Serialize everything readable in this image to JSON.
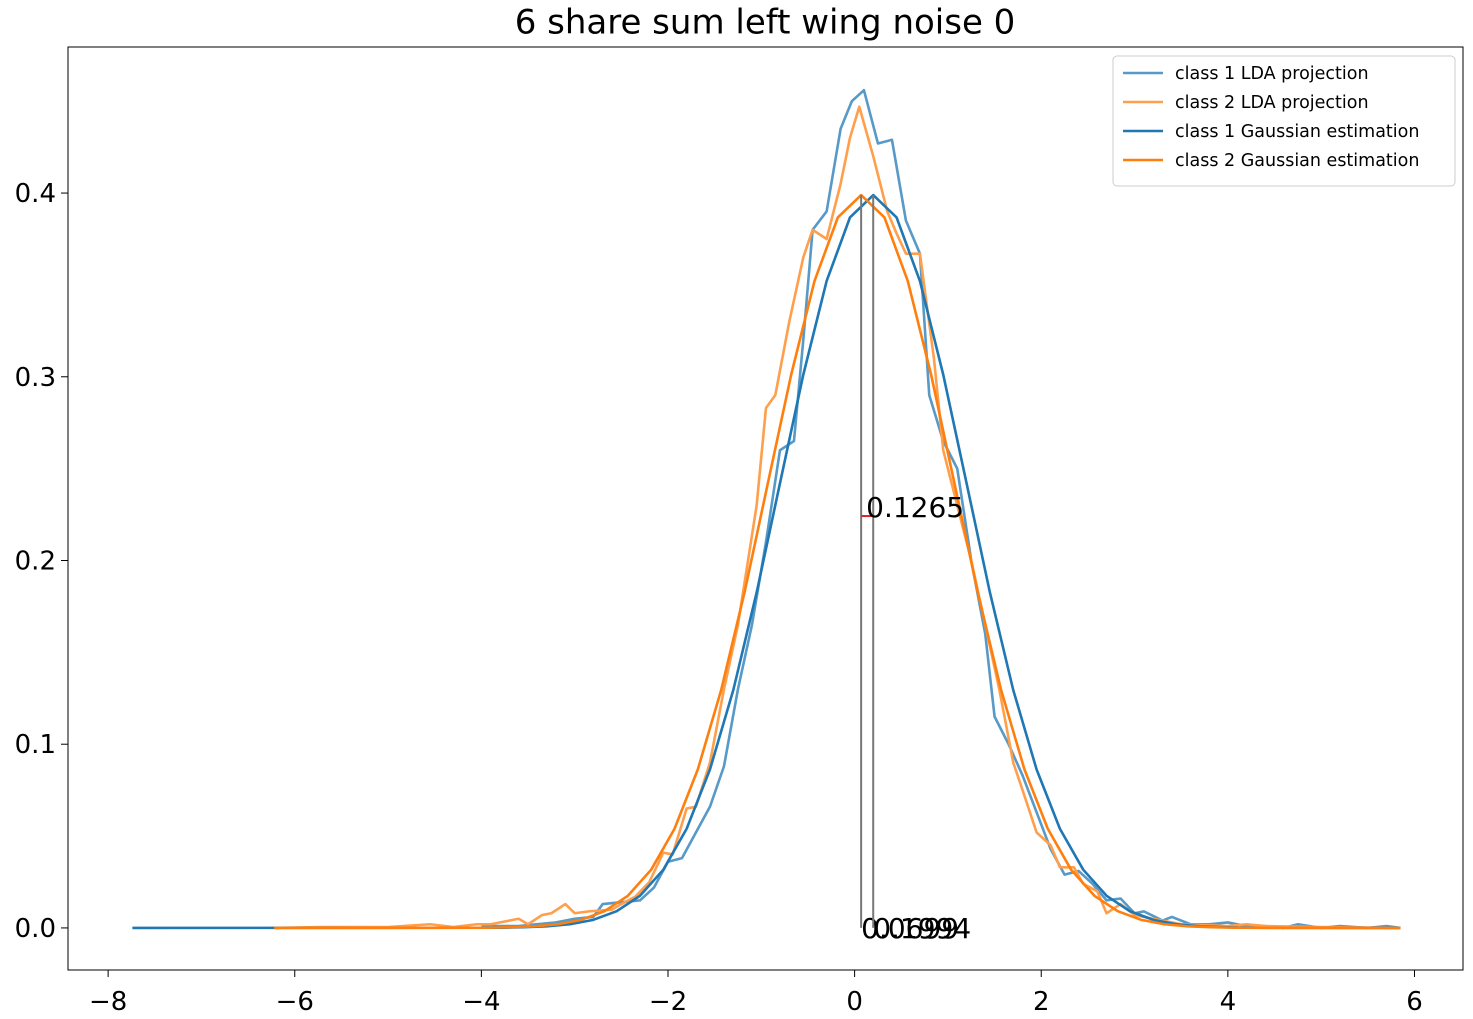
{
  "chart_data": {
    "type": "line",
    "title": "6 share sum left wing noise 0",
    "xlim": [
      -8.43,
      6.52
    ],
    "ylim": [
      -0.0229,
      0.4795
    ],
    "xticks": [
      {
        "value": -8,
        "label": "−8"
      },
      {
        "value": -6,
        "label": "−6"
      },
      {
        "value": -4,
        "label": "−4"
      },
      {
        "value": -2,
        "label": "−2"
      },
      0,
      2,
      4,
      6
    ],
    "yticks": [
      {
        "value": 0,
        "label": "0.0"
      },
      0.1,
      0.2,
      0.3,
      0.4
    ],
    "grid": false,
    "legend": "upper right",
    "series": [
      {
        "name": "class 1 LDA projection",
        "color": "#5799c7",
        "x": [
          -4,
          -3.6,
          -3.2,
          -3.0,
          -2.8,
          -2.7,
          -2.5,
          -2.3,
          -2.15,
          -2.0,
          -1.85,
          -1.7,
          -1.55,
          -1.4,
          -1.25,
          -1.1,
          -0.95,
          -0.8,
          -0.65,
          -0.55,
          -0.45,
          -0.3,
          -0.15,
          -0.03,
          0.1,
          0.25,
          0.4,
          0.55,
          0.7,
          0.8,
          0.95,
          1.1,
          1.25,
          1.4,
          1.5,
          1.65,
          1.8,
          1.95,
          2.1,
          2.25,
          2.4,
          2.55,
          2.7,
          2.85,
          3.0,
          3.1,
          3.3,
          3.4,
          3.6,
          3.8,
          4.0,
          4.2,
          4.4,
          4.6,
          4.75,
          5.0,
          5.2,
          5.5,
          5.7,
          5.85
        ],
        "values": [
          0.001,
          0.001,
          0.003,
          0.005,
          0.006,
          0.013,
          0.014,
          0.015,
          0.022,
          0.036,
          0.038,
          0.052,
          0.066,
          0.088,
          0.13,
          0.165,
          0.21,
          0.26,
          0.265,
          0.32,
          0.38,
          0.39,
          0.435,
          0.45,
          0.456,
          0.427,
          0.429,
          0.385,
          0.367,
          0.29,
          0.265,
          0.25,
          0.2,
          0.16,
          0.115,
          0.1,
          0.083,
          0.063,
          0.043,
          0.029,
          0.031,
          0.024,
          0.015,
          0.016,
          0.008,
          0.009,
          0.004,
          0.006,
          0.002,
          0.002,
          0.003,
          0.001,
          0.001,
          0.0,
          0.002,
          0.0,
          0.001,
          0.0,
          0.001,
          0
        ]
      },
      {
        "name": "class 2 LDA projection",
        "color": "#ff9f4b",
        "x": [
          -6.22,
          -5.7,
          -5.0,
          -4.55,
          -4.3,
          -4.05,
          -3.9,
          -3.6,
          -3.5,
          -3.35,
          -3.25,
          -3.1,
          -3.0,
          -2.85,
          -2.6,
          -2.5,
          -2.35,
          -2.2,
          -2.05,
          -1.95,
          -1.8,
          -1.7,
          -1.55,
          -1.4,
          -1.25,
          -1.05,
          -0.95,
          -0.85,
          -0.7,
          -0.55,
          -0.45,
          -0.3,
          -0.15,
          -0.05,
          0.05,
          0.2,
          0.35,
          0.45,
          0.55,
          0.7,
          0.85,
          0.95,
          1.1,
          1.25,
          1.4,
          1.55,
          1.7,
          1.8,
          1.95,
          2.1,
          2.2,
          2.35,
          2.45,
          2.6,
          2.7,
          2.85,
          3.0,
          3.2,
          3.5,
          4.0,
          4.2,
          4.4,
          5.0,
          5.85
        ],
        "values": [
          0,
          0.0005,
          0.0005,
          0.002,
          0.0005,
          0.002,
          0.002,
          0.005,
          0.002,
          0.007,
          0.008,
          0.013,
          0.008,
          0.009,
          0.01,
          0.013,
          0.017,
          0.025,
          0.041,
          0.04,
          0.065,
          0.066,
          0.09,
          0.13,
          0.165,
          0.23,
          0.283,
          0.29,
          0.33,
          0.365,
          0.38,
          0.375,
          0.405,
          0.43,
          0.447,
          0.42,
          0.39,
          0.378,
          0.367,
          0.367,
          0.31,
          0.26,
          0.23,
          0.2,
          0.165,
          0.13,
          0.09,
          0.075,
          0.052,
          0.045,
          0.033,
          0.033,
          0.024,
          0.02,
          0.008,
          0.013,
          0.007,
          0.005,
          0.002,
          0.001,
          0.002,
          0.001,
          0.0005,
          0
        ]
      },
      {
        "name": "class 1 Gaussian estimation",
        "color": "#1f77b4",
        "x": [
          -7.74,
          -3.8,
          -3.55,
          -3.3,
          -3.05,
          -2.8,
          -2.55,
          -2.3,
          -2.05,
          -1.8,
          -1.55,
          -1.3,
          -1.05,
          -0.8,
          -0.55,
          -0.3,
          -0.05,
          0.2,
          0.45,
          0.7,
          0.95,
          1.2,
          1.45,
          1.7,
          1.95,
          2.2,
          2.45,
          2.7,
          2.95,
          3.2,
          3.45,
          3.7,
          3.95,
          4.2,
          5.85
        ],
        "values": [
          0,
          0.0001,
          0.0004,
          0.0009,
          0.002,
          0.0044,
          0.0091,
          0.0175,
          0.0317,
          0.054,
          0.0863,
          0.1295,
          0.1826,
          0.242,
          0.3011,
          0.3521,
          0.3867,
          0.3989,
          0.3867,
          0.3521,
          0.3011,
          0.242,
          0.1826,
          0.1295,
          0.0863,
          0.054,
          0.0317,
          0.0175,
          0.0091,
          0.0044,
          0.002,
          0.0009,
          0.0004,
          0.0001,
          0
        ]
      },
      {
        "name": "class 2 Gaussian estimation",
        "color": "#ff7f0e",
        "x": [
          -6.22,
          -3.93,
          -3.68,
          -3.43,
          -3.18,
          -2.93,
          -2.68,
          -2.43,
          -2.18,
          -1.93,
          -1.68,
          -1.43,
          -1.18,
          -0.93,
          -0.68,
          -0.43,
          -0.18,
          0.07,
          0.32,
          0.57,
          0.82,
          1.07,
          1.32,
          1.57,
          1.82,
          2.07,
          2.32,
          2.57,
          2.82,
          3.07,
          3.32,
          3.57,
          3.82,
          4.07,
          5.85
        ],
        "values": [
          0,
          0.0001,
          0.0004,
          0.0009,
          0.002,
          0.0044,
          0.0091,
          0.0175,
          0.0317,
          0.054,
          0.0863,
          0.1295,
          0.1826,
          0.242,
          0.3011,
          0.3521,
          0.3867,
          0.3989,
          0.3867,
          0.3521,
          0.3011,
          0.242,
          0.1826,
          0.1295,
          0.0863,
          0.054,
          0.0317,
          0.0175,
          0.0091,
          0.0044,
          0.002,
          0.0009,
          0.0004,
          0.0001,
          0
        ]
      }
    ],
    "mean_lines": [
      {
        "x": 0.0699,
        "top": 0.3989
      },
      {
        "x": 0.1994,
        "top": 0.3989
      }
    ],
    "mean_line_color": "#777777",
    "separation": {
      "value": 0.1265,
      "y": 0.2242,
      "color": "#d62728"
    }
  }
}
